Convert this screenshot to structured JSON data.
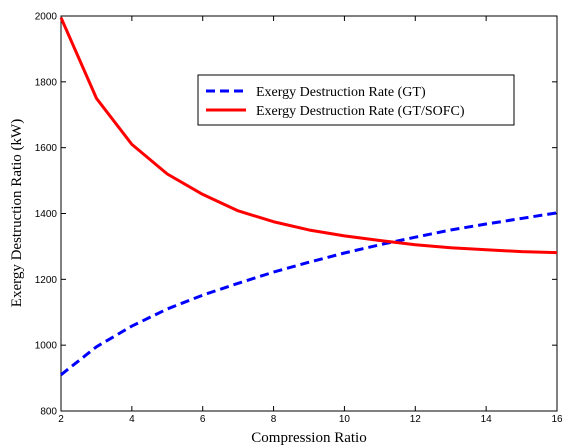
{
  "chart_data": {
    "type": "line",
    "title": "",
    "xlabel": "Compression Ratio",
    "ylabel": "Exergy Destruction Ratio (kW)",
    "xlim": [
      2,
      16
    ],
    "ylim": [
      800,
      2000
    ],
    "xticks": [
      2,
      4,
      6,
      8,
      10,
      12,
      14,
      16
    ],
    "yticks": [
      800,
      1000,
      1200,
      1400,
      1600,
      1800,
      2000
    ],
    "grid": false,
    "legend_position": "top-right",
    "series": [
      {
        "name": "Exergy Destruction Rate (GT)",
        "color": "#0000ff",
        "style": "dashed",
        "x": [
          2,
          3,
          4,
          5,
          6,
          7,
          8,
          9,
          10,
          11,
          12,
          13,
          14,
          15,
          16
        ],
        "y": [
          910,
          995,
          1058,
          1110,
          1152,
          1188,
          1222,
          1252,
          1280,
          1305,
          1328,
          1350,
          1368,
          1385,
          1402
        ]
      },
      {
        "name": "Exergy Destruction Rate (GT/SOFC)",
        "color": "#ff0000",
        "style": "solid",
        "x": [
          2,
          3,
          4,
          5,
          6,
          7,
          8,
          9,
          10,
          11,
          12,
          13,
          14,
          15,
          16
        ],
        "y": [
          1995,
          1750,
          1610,
          1520,
          1458,
          1408,
          1375,
          1350,
          1332,
          1318,
          1305,
          1296,
          1290,
          1284,
          1281
        ]
      }
    ]
  }
}
